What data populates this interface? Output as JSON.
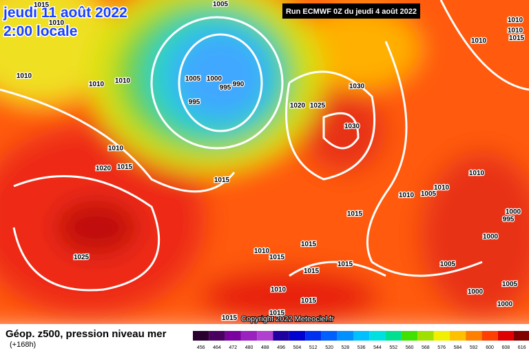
{
  "header": {
    "date": "jeudi 11 août 2022",
    "time": "2:00 locale",
    "run": "Run ECMWF 0Z du jeudi 4 août 2022"
  },
  "map": {
    "isobar_labels": [
      "1015",
      "1010",
      "1010",
      "1010",
      "1010",
      "1005",
      "1005",
      "1000",
      "995",
      "990",
      "995",
      "1010",
      "1020",
      "1015",
      "1015",
      "1025",
      "1030",
      "1020",
      "1025",
      "1030",
      "1010",
      "1010",
      "1005",
      "1010",
      "1015",
      "1000",
      "995",
      "1000",
      "1015",
      "1010",
      "1015",
      "1015",
      "1015",
      "1005",
      "1005",
      "1010",
      "1015",
      "1000",
      "1000",
      "1015",
      "1015",
      "1010",
      "1010",
      "1010",
      "1015"
    ],
    "copyright": "Copyright 2022 Meteociel.fr"
  },
  "legend": {
    "title": "Géop. z500, pression niveau mer",
    "lead": "(+168h)",
    "scale": {
      "values": [
        456,
        464,
        472,
        480,
        488,
        496,
        504,
        512,
        520,
        528,
        536,
        544,
        552,
        560,
        568,
        576,
        584,
        592,
        600,
        608,
        616
      ],
      "colors": [
        "#2a0030",
        "#4a0060",
        "#7a00a0",
        "#9a20c0",
        "#b040d0",
        "#2000a0",
        "#0000d0",
        "#0030f0",
        "#0060ff",
        "#0090ff",
        "#00c0ff",
        "#00e0e0",
        "#00e090",
        "#40e000",
        "#a0e000",
        "#f0f000",
        "#ffc000",
        "#ff8000",
        "#ff4000",
        "#e00000",
        "#800000"
      ]
    }
  }
}
